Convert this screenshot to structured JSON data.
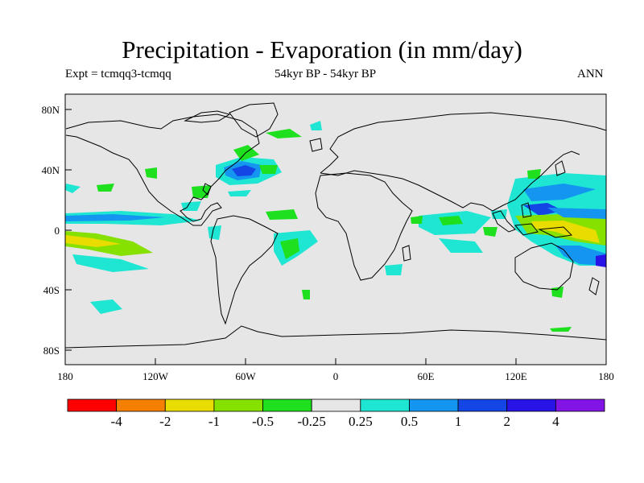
{
  "title": "Precipitation - Evaporation (in mm/day)",
  "subtitle_left": "Expt = tcmqq3-tcmqq",
  "subtitle_center": "54kyr BP - 54kyr BP",
  "subtitle_right": "ANN",
  "lat_ticks": [
    "80N",
    "40N",
    "0",
    "40S",
    "80S"
  ],
  "lon_ticks": [
    "180",
    "120W",
    "60W",
    "0",
    "60E",
    "120E",
    "180"
  ],
  "colorbar": {
    "colors": [
      "#ff0000",
      "#f57f00",
      "#e8dc00",
      "#86e000",
      "#1ee01e",
      "#e6e6e6",
      "#1ee6d2",
      "#1496f0",
      "#1446e6",
      "#2814e6",
      "#8214e6"
    ],
    "labels": [
      "-4",
      "-2",
      "-1",
      "-0.5",
      "-0.25",
      "0.25",
      "0.5",
      "1",
      "2",
      "4"
    ]
  },
  "map_colors": {
    "background": "#e6e6e6",
    "coast": "#000000"
  }
}
